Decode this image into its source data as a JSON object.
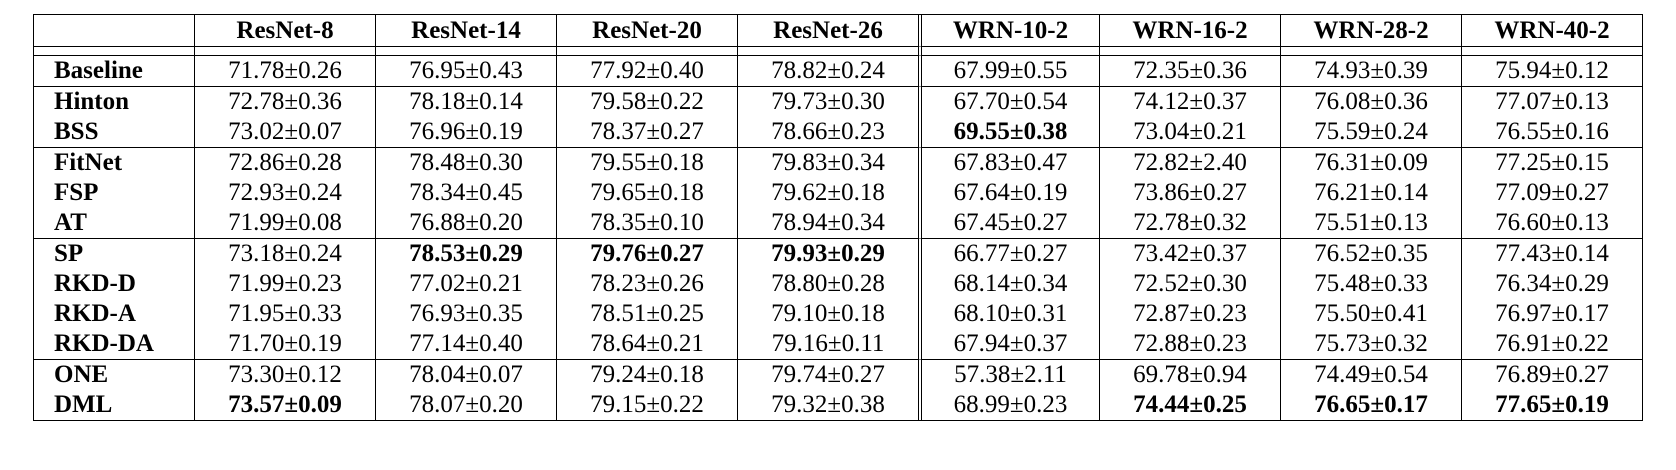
{
  "table": {
    "corner": "",
    "columns": [
      "ResNet-8",
      "ResNet-14",
      "ResNet-20",
      "ResNet-26",
      "WRN-10-2",
      "WRN-16-2",
      "WRN-28-2",
      "WRN-40-2"
    ],
    "groups": [
      {
        "rows": [
          {
            "method": "Baseline",
            "cells": [
              "71.78±0.26",
              "76.95±0.43",
              "77.92±0.40",
              "78.82±0.24",
              "67.99±0.55",
              "72.35±0.36",
              "74.93±0.39",
              "75.94±0.12"
            ],
            "bold": [
              false,
              false,
              false,
              false,
              false,
              false,
              false,
              false
            ]
          }
        ]
      },
      {
        "rows": [
          {
            "method": "Hinton",
            "cells": [
              "72.78±0.36",
              "78.18±0.14",
              "79.58±0.22",
              "79.73±0.30",
              "67.70±0.54",
              "74.12±0.37",
              "76.08±0.36",
              "77.07±0.13"
            ],
            "bold": [
              false,
              false,
              false,
              false,
              false,
              false,
              false,
              false
            ]
          },
          {
            "method": "BSS",
            "cells": [
              "73.02±0.07",
              "76.96±0.19",
              "78.37±0.27",
              "78.66±0.23",
              "69.55±0.38",
              "73.04±0.21",
              "75.59±0.24",
              "76.55±0.16"
            ],
            "bold": [
              false,
              false,
              false,
              false,
              true,
              false,
              false,
              false
            ]
          }
        ]
      },
      {
        "rows": [
          {
            "method": "FitNet",
            "cells": [
              "72.86±0.28",
              "78.48±0.30",
              "79.55±0.18",
              "79.83±0.34",
              "67.83±0.47",
              "72.82±2.40",
              "76.31±0.09",
              "77.25±0.15"
            ],
            "bold": [
              false,
              false,
              false,
              false,
              false,
              false,
              false,
              false
            ]
          },
          {
            "method": "FSP",
            "cells": [
              "72.93±0.24",
              "78.34±0.45",
              "79.65±0.18",
              "79.62±0.18",
              "67.64±0.19",
              "73.86±0.27",
              "76.21±0.14",
              "77.09±0.27"
            ],
            "bold": [
              false,
              false,
              false,
              false,
              false,
              false,
              false,
              false
            ]
          },
          {
            "method": "AT",
            "cells": [
              "71.99±0.08",
              "76.88±0.20",
              "78.35±0.10",
              "78.94±0.34",
              "67.45±0.27",
              "72.78±0.32",
              "75.51±0.13",
              "76.60±0.13"
            ],
            "bold": [
              false,
              false,
              false,
              false,
              false,
              false,
              false,
              false
            ]
          }
        ]
      },
      {
        "rows": [
          {
            "method": "SP",
            "cells": [
              "73.18±0.24",
              "78.53±0.29",
              "79.76±0.27",
              "79.93±0.29",
              "66.77±0.27",
              "73.42±0.37",
              "76.52±0.35",
              "77.43±0.14"
            ],
            "bold": [
              false,
              true,
              true,
              true,
              false,
              false,
              false,
              false
            ]
          },
          {
            "method": "RKD-D",
            "cells": [
              "71.99±0.23",
              "77.02±0.21",
              "78.23±0.26",
              "78.80±0.28",
              "68.14±0.34",
              "72.52±0.30",
              "75.48±0.33",
              "76.34±0.29"
            ],
            "bold": [
              false,
              false,
              false,
              false,
              false,
              false,
              false,
              false
            ]
          },
          {
            "method": "RKD-A",
            "cells": [
              "71.95±0.33",
              "76.93±0.35",
              "78.51±0.25",
              "79.10±0.18",
              "68.10±0.31",
              "72.87±0.23",
              "75.50±0.41",
              "76.97±0.17"
            ],
            "bold": [
              false,
              false,
              false,
              false,
              false,
              false,
              false,
              false
            ]
          },
          {
            "method": "RKD-DA",
            "cells": [
              "71.70±0.19",
              "77.14±0.40",
              "78.64±0.21",
              "79.16±0.11",
              "67.94±0.37",
              "72.88±0.23",
              "75.73±0.32",
              "76.91±0.22"
            ],
            "bold": [
              false,
              false,
              false,
              false,
              false,
              false,
              false,
              false
            ]
          }
        ]
      },
      {
        "rows": [
          {
            "method": "ONE",
            "cells": [
              "73.30±0.12",
              "78.04±0.07",
              "79.24±0.18",
              "79.74±0.27",
              "57.38±2.11",
              "69.78±0.94",
              "74.49±0.54",
              "76.89±0.27"
            ],
            "bold": [
              false,
              false,
              false,
              false,
              false,
              false,
              false,
              false
            ]
          },
          {
            "method": "DML",
            "cells": [
              "73.57±0.09",
              "78.07±0.20",
              "79.15±0.22",
              "79.32±0.38",
              "68.99±0.23",
              "74.44±0.25",
              "76.65±0.17",
              "77.65±0.19"
            ],
            "bold": [
              true,
              false,
              false,
              false,
              false,
              true,
              true,
              true
            ]
          }
        ]
      }
    ]
  }
}
